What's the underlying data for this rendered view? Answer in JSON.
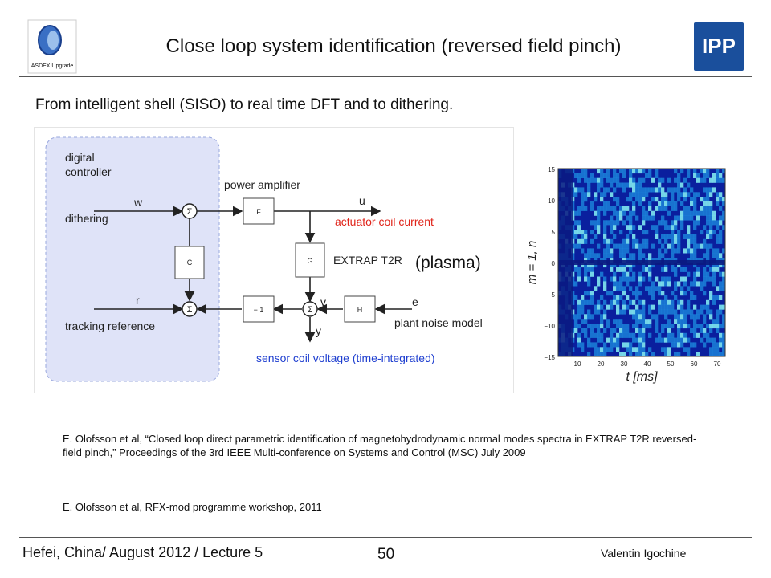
{
  "header": {
    "title": "Close loop system identification (reversed field pinch)",
    "left_logo_text": "ASDEX Upgrade",
    "right_logo_text": "IPP"
  },
  "subtitle": "From intelligent shell (SISO) to real time DFT and to dithering.",
  "diagram": {
    "controller_label_1": "digital",
    "controller_label_2": "controller",
    "w": "w",
    "dithering": "dithering",
    "r": "r",
    "tracking_reference": "tracking reference",
    "power_amplifier": "power amplifier",
    "u": "u",
    "actuator_coil_current": "actuator coil current",
    "plant_label": "EXTRAP T2R",
    "plasma": "(plasma)",
    "v": "v",
    "e": "e",
    "y": "y",
    "plant_noise_model": "plant noise model",
    "sensor_coil_voltage": "sensor coil voltage (time-integrated)",
    "block_F": "F",
    "block_C": "C",
    "block_G": "G",
    "block_H": "H",
    "block_neg1": "− 1",
    "sigma": "Σ"
  },
  "spectrum": {
    "y_ticks": [
      "15",
      "10",
      "5",
      "0",
      "−5",
      "−10",
      "−15"
    ],
    "x_ticks": [
      "10",
      "20",
      "30",
      "40",
      "50",
      "60",
      "70"
    ],
    "ylabel": "m = 1, n",
    "xlabel": "t [ms]",
    "colors": {
      "low": "#0a1f9e",
      "mid": "#1e8fe0",
      "high": "#7fe8f0"
    }
  },
  "references": {
    "ref1": "E. Olofsson et al, “Closed loop direct parametric identification of magnetohydrodynamic normal modes spectra in EXTRAP T2R reversed-field pinch,” Proceedings of the 3rd IEEE Multi-conference on Systems and Control (MSC) July 2009",
    "ref2": "E. Olofsson et al, RFX-mod programme workshop, 2011"
  },
  "footer": {
    "left": "Hefei, China/ August 2012 / Lecture 5",
    "page": "50",
    "right": "Valentin Igochine"
  }
}
